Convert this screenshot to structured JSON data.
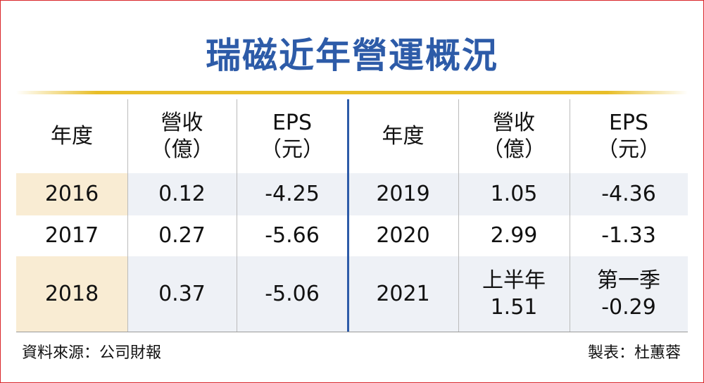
{
  "title": "瑞磁近年營運概況",
  "table": {
    "header": [
      [
        "年度"
      ],
      [
        "營收",
        "（億）"
      ],
      [
        "EPS",
        "（元）"
      ],
      [
        "年度"
      ],
      [
        "營收",
        "（億）"
      ],
      [
        "EPS",
        "（元）"
      ]
    ],
    "rows": [
      [
        "2016",
        "0.12",
        "-4.25",
        "2019",
        "1.05",
        "-4.36"
      ],
      [
        "2017",
        "0.27",
        "-5.66",
        "2020",
        "2.99",
        "-1.33"
      ],
      [
        "2018",
        "0.37",
        "-5.06",
        "2021",
        [
          "上半年",
          "1.51"
        ],
        [
          "第一季",
          "-0.29"
        ]
      ]
    ]
  },
  "footer": {
    "source": "資料來源：公司財報",
    "author": "製表：杜蕙蓉"
  }
}
